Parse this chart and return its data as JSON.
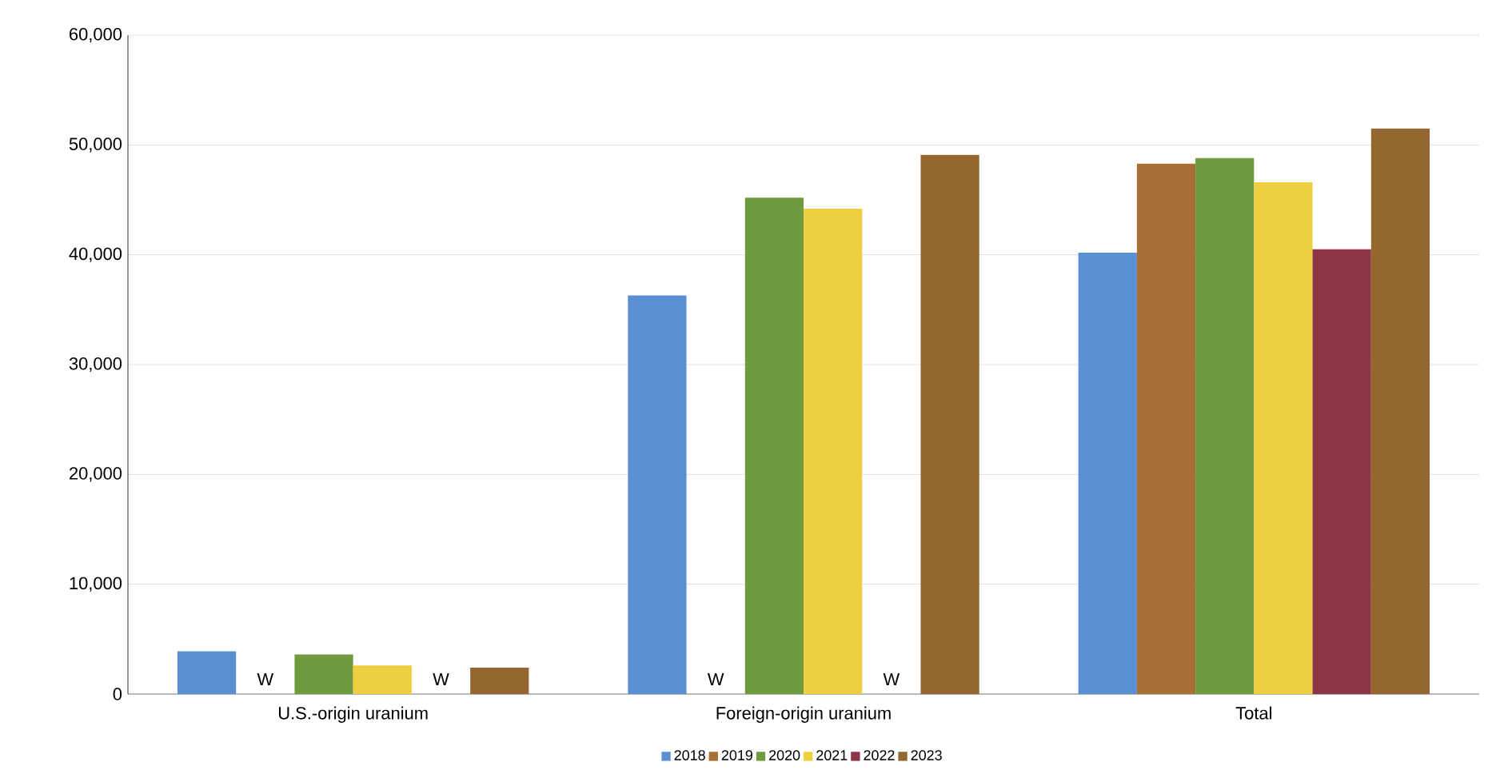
{
  "chart_data": {
    "type": "bar",
    "categories": [
      "U.S.-origin uranium",
      "Foreign-origin uranium",
      "Total"
    ],
    "series": [
      {
        "name": "2018",
        "color": "#5b8fd4",
        "values": [
          3900,
          36300,
          40200
        ]
      },
      {
        "name": "2019",
        "color": "#a86f36",
        "values": [
          null,
          null,
          48300
        ],
        "value_labels": [
          "W",
          "W",
          null
        ]
      },
      {
        "name": "2020",
        "color": "#6f9a3e",
        "values": [
          3600,
          45200,
          48800
        ]
      },
      {
        "name": "2021",
        "color": "#eecf3f",
        "values": [
          2600,
          44200,
          46600
        ]
      },
      {
        "name": "2022",
        "color": "#8b3444",
        "values": [
          null,
          null,
          40500
        ],
        "value_labels": [
          "W",
          "W",
          null
        ]
      },
      {
        "name": "2023",
        "color": "#93672f",
        "values": [
          2400,
          49100,
          51500
        ]
      }
    ],
    "ylim": [
      0,
      60000
    ],
    "yticks": [
      0,
      {
        "value": 10000,
        "label": "10,000"
      },
      {
        "value": 20000,
        "label": "20,000"
      },
      {
        "value": 30000,
        "label": "30,000"
      },
      {
        "value": 40000,
        "label": "40,000"
      },
      {
        "value": 50000,
        "label": "50,000"
      },
      {
        "value": 60000,
        "label": "60,000"
      }
    ],
    "grid": "y",
    "legend": "bottom"
  }
}
